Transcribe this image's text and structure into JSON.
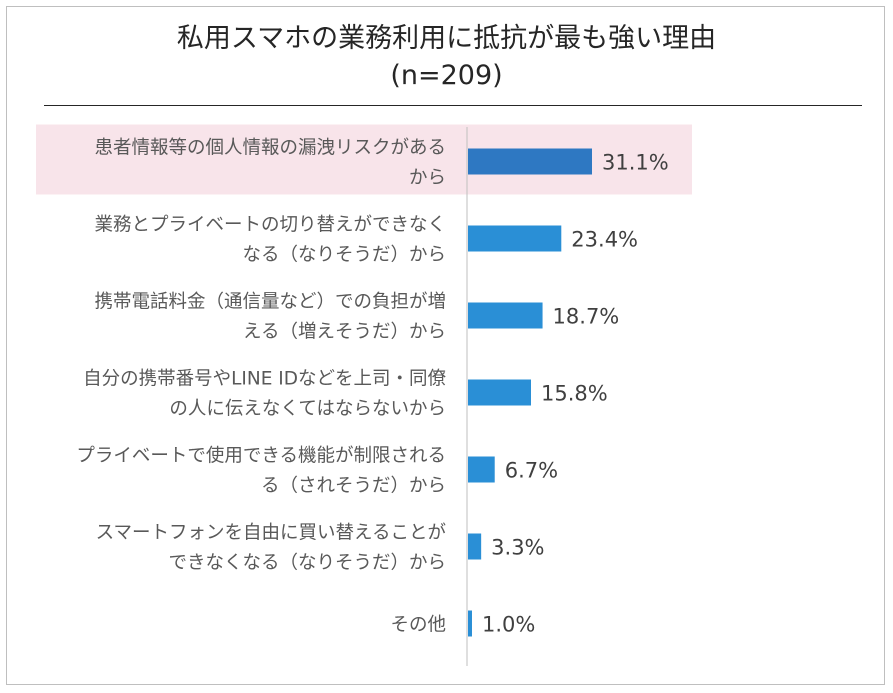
{
  "chart_data": {
    "type": "bar",
    "orientation": "horizontal",
    "title": "私用スマホの業務利用に抵抗が最も強い理由",
    "subtitle": "(n=209)",
    "xlabel": "",
    "ylabel": "",
    "xlim": [
      0,
      100
    ],
    "unit": "%",
    "categories": [
      [
        "患者情報等の個人情報の漏洩リスクがある",
        "から"
      ],
      [
        "業務とプライベートの切り替えができなく",
        "なる（なりそうだ）から"
      ],
      [
        "携帯電話料金（通信量など）での負担が増",
        "える（増えそうだ）から"
      ],
      [
        "自分の携帯番号やLINE IDなどを上司・同僚",
        "の人に伝えなくてはならないから"
      ],
      [
        "プライベートで使用できる機能が制限される",
        "る（されそうだ）から"
      ],
      [
        "スマートフォンを自由に買い替えることが",
        "できなくなる（なりそうだ）から"
      ],
      [
        "その他"
      ]
    ],
    "values": [
      31.1,
      23.4,
      18.7,
      15.8,
      6.7,
      3.3,
      1.0
    ],
    "value_labels": [
      "31.1%",
      "23.4%",
      "18.7%",
      "15.8%",
      "6.7%",
      "3.3%",
      "1.0%"
    ],
    "highlight_index": 0,
    "colors": {
      "bar": "#2A8FD6",
      "bar_highlight": "#2E78C2",
      "highlight_band": "#F8E4EA",
      "axis": "#BFBFBF"
    }
  }
}
